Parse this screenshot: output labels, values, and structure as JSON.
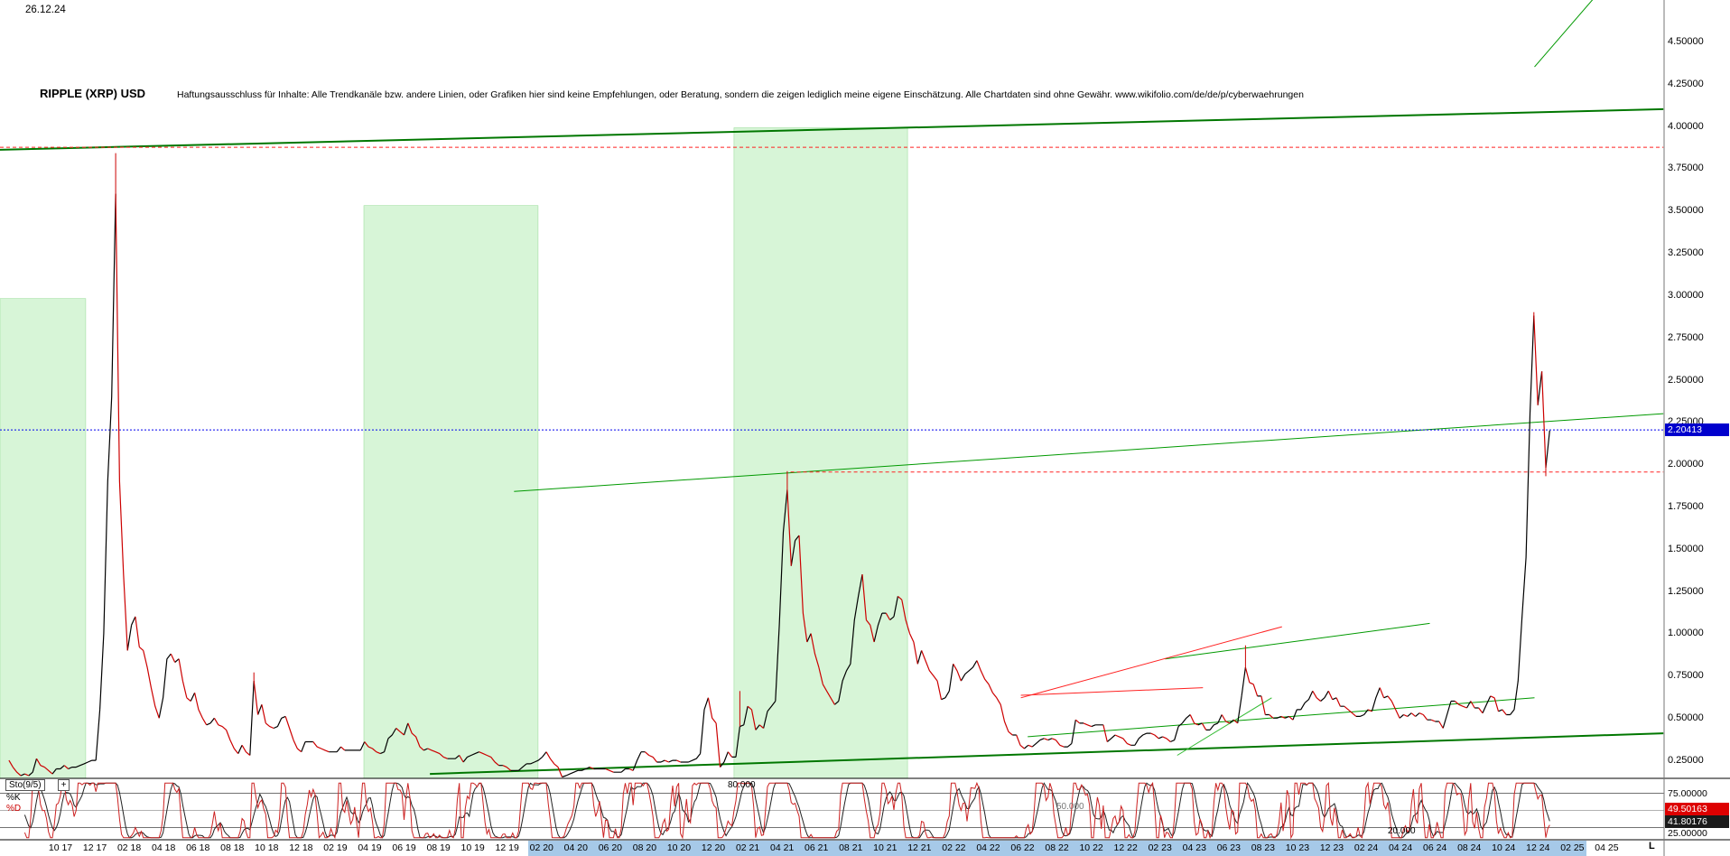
{
  "header": {
    "date": "26.12.24",
    "title": "RIPPLE (XRP) USD",
    "disclaimer": "Haftungsausschluss für Inhalte: Alle Trendkanäle bzw. andere Linien, oder Grafiken hier sind keine Empfehlungen, oder Beratung, sondern die zeigen lediglich meine eigene Einschätzung. Alle Chartdaten sind ohne Gewähr. www.wikifolio.com/de/de/p/cyberwaehrungen"
  },
  "price_axis": {
    "current_price_label": "2.20413"
  },
  "date_axis": {
    "highlight_from_label": "02 20",
    "highlight_to_label": "02 25",
    "corner_mark": "L"
  },
  "stochastic": {
    "name": "Sto(9/5)",
    "expand_button": "+",
    "k_label": "%K",
    "d_label": "%D",
    "k_value": "49.50163",
    "d_value": "41.80176",
    "upper_tick": "75.00000",
    "lower_tick": "25.00000",
    "levels": [
      80,
      50,
      20
    ],
    "line_labels": {
      "upper": "80.000",
      "middle": "50.000",
      "lower": "20.000"
    }
  },
  "colors": {
    "up": "#000000",
    "down": "#cc0000",
    "trend_green_dark": "#007700",
    "trend_green": "#009900",
    "trend_green_bright": "#33bb33",
    "box_fill": "#c9f2c9",
    "box_stroke": "#9fdf9f",
    "red": "#ff2222",
    "blue": "#0000ee",
    "axis_highlight": "#a6c9e8"
  },
  "chart_data": {
    "type": "candlestick",
    "title": "RIPPLE (XRP) USD",
    "unit": "USD",
    "interval": "weekly",
    "series_start": "2017-07",
    "series_start_month_offset": -3.0,
    "y_tick_step": 0.25,
    "y_ticks": [
      "4.50000",
      "4.25000",
      "4.00000",
      "3.75000",
      "3.50000",
      "3.25000",
      "3.00000",
      "2.75000",
      "2.50000",
      "2.25000",
      "2.00000",
      "1.75000",
      "1.50000",
      "1.25000",
      "1.00000",
      "0.75000",
      "0.50000",
      "0.25000"
    ],
    "x_ticks": [
      "10 17",
      "12 17",
      "02 18",
      "04 18",
      "06 18",
      "08 18",
      "10 18",
      "12 18",
      "02 19",
      "04 19",
      "06 19",
      "08 19",
      "10 19",
      "12 19",
      "02 20",
      "04 20",
      "06 20",
      "08 20",
      "10 20",
      "12 20",
      "02 21",
      "04 21",
      "06 21",
      "08 21",
      "10 21",
      "12 21",
      "02 22",
      "04 22",
      "06 22",
      "08 22",
      "10 22",
      "12 22",
      "02 23",
      "04 23",
      "06 23",
      "08 23",
      "10 23",
      "12 23",
      "02 24",
      "04 24",
      "06 24",
      "08 24",
      "10 24",
      "12 24",
      "02 25",
      "04 25"
    ],
    "current_price": 2.20413,
    "closes": [
      0.25,
      0.21,
      0.18,
      0.16,
      0.17,
      0.16,
      0.18,
      0.26,
      0.22,
      0.21,
      0.19,
      0.17,
      0.2,
      0.2,
      0.22,
      0.2,
      0.21,
      0.21,
      0.22,
      0.23,
      0.24,
      0.25,
      0.25,
      0.55,
      1.0,
      1.9,
      2.4,
      3.6,
      1.9,
      1.35,
      0.9,
      1.05,
      1.1,
      0.92,
      0.9,
      0.8,
      0.68,
      0.57,
      0.5,
      0.62,
      0.85,
      0.88,
      0.83,
      0.85,
      0.72,
      0.62,
      0.6,
      0.65,
      0.55,
      0.5,
      0.46,
      0.47,
      0.5,
      0.46,
      0.45,
      0.43,
      0.37,
      0.32,
      0.29,
      0.34,
      0.3,
      0.28,
      0.72,
      0.52,
      0.58,
      0.47,
      0.45,
      0.44,
      0.45,
      0.5,
      0.51,
      0.44,
      0.37,
      0.32,
      0.3,
      0.36,
      0.36,
      0.36,
      0.33,
      0.32,
      0.31,
      0.3,
      0.3,
      0.3,
      0.33,
      0.31,
      0.31,
      0.31,
      0.31,
      0.31,
      0.36,
      0.33,
      0.32,
      0.3,
      0.29,
      0.3,
      0.38,
      0.4,
      0.44,
      0.42,
      0.4,
      0.47,
      0.41,
      0.39,
      0.33,
      0.31,
      0.32,
      0.31,
      0.3,
      0.29,
      0.27,
      0.26,
      0.26,
      0.26,
      0.28,
      0.24,
      0.27,
      0.28,
      0.29,
      0.3,
      0.29,
      0.28,
      0.27,
      0.24,
      0.22,
      0.22,
      0.21,
      0.19,
      0.19,
      0.19,
      0.21,
      0.23,
      0.23,
      0.24,
      0.25,
      0.27,
      0.3,
      0.26,
      0.23,
      0.21,
      0.14,
      0.16,
      0.17,
      0.18,
      0.19,
      0.19,
      0.2,
      0.21,
      0.2,
      0.2,
      0.2,
      0.2,
      0.19,
      0.18,
      0.18,
      0.18,
      0.2,
      0.2,
      0.19,
      0.25,
      0.3,
      0.3,
      0.28,
      0.27,
      0.24,
      0.24,
      0.25,
      0.24,
      0.25,
      0.25,
      0.24,
      0.24,
      0.24,
      0.25,
      0.26,
      0.29,
      0.55,
      0.62,
      0.5,
      0.47,
      0.21,
      0.24,
      0.3,
      0.27,
      0.27,
      0.45,
      0.46,
      0.57,
      0.55,
      0.43,
      0.46,
      0.44,
      0.54,
      0.57,
      0.6,
      1.05,
      1.6,
      1.85,
      1.4,
      1.55,
      1.58,
      1.12,
      0.95,
      1.0,
      0.88,
      0.8,
      0.7,
      0.66,
      0.62,
      0.58,
      0.6,
      0.72,
      0.78,
      0.82,
      1.08,
      1.22,
      1.35,
      1.08,
      1.05,
      0.95,
      1.05,
      1.12,
      1.12,
      1.08,
      1.1,
      1.22,
      1.2,
      1.08,
      1.0,
      0.95,
      0.82,
      0.9,
      0.84,
      0.78,
      0.75,
      0.72,
      0.61,
      0.62,
      0.66,
      0.82,
      0.78,
      0.72,
      0.76,
      0.78,
      0.8,
      0.84,
      0.78,
      0.73,
      0.7,
      0.65,
      0.62,
      0.58,
      0.48,
      0.42,
      0.4,
      0.4,
      0.34,
      0.32,
      0.34,
      0.33,
      0.35,
      0.37,
      0.38,
      0.37,
      0.38,
      0.37,
      0.34,
      0.33,
      0.33,
      0.35,
      0.49,
      0.47,
      0.47,
      0.46,
      0.45,
      0.46,
      0.46,
      0.46,
      0.36,
      0.38,
      0.4,
      0.39,
      0.38,
      0.35,
      0.34,
      0.34,
      0.38,
      0.4,
      0.41,
      0.41,
      0.4,
      0.38,
      0.39,
      0.38,
      0.36,
      0.37,
      0.45,
      0.47,
      0.5,
      0.52,
      0.47,
      0.46,
      0.47,
      0.43,
      0.43,
      0.46,
      0.47,
      0.52,
      0.48,
      0.47,
      0.49,
      0.47,
      0.63,
      0.8,
      0.71,
      0.7,
      0.63,
      0.63,
      0.52,
      0.52,
      0.5,
      0.5,
      0.51,
      0.5,
      0.51,
      0.49,
      0.55,
      0.55,
      0.59,
      0.61,
      0.66,
      0.62,
      0.6,
      0.62,
      0.66,
      0.61,
      0.62,
      0.57,
      0.57,
      0.55,
      0.53,
      0.51,
      0.51,
      0.52,
      0.55,
      0.54,
      0.62,
      0.68,
      0.62,
      0.63,
      0.6,
      0.55,
      0.5,
      0.52,
      0.51,
      0.53,
      0.51,
      0.53,
      0.52,
      0.49,
      0.49,
      0.48,
      0.48,
      0.44,
      0.52,
      0.6,
      0.6,
      0.58,
      0.57,
      0.56,
      0.6,
      0.56,
      0.56,
      0.53,
      0.58,
      0.63,
      0.62,
      0.54,
      0.55,
      0.52,
      0.52,
      0.55,
      0.72,
      1.1,
      1.45,
      2.3,
      2.88,
      2.35,
      2.55,
      1.98,
      2.2
    ],
    "wicks": [
      {
        "i": 27,
        "p": 3.84
      },
      {
        "i": 62,
        "p": 0.77
      },
      {
        "i": 185,
        "p": 0.66
      },
      {
        "i": 197,
        "p": 1.96
      },
      {
        "i": 313,
        "p": 0.93
      },
      {
        "i": 386,
        "p": 2.9
      },
      {
        "i": 389,
        "p": 1.93
      }
    ],
    "annotations": {
      "green_boxes": [
        {
          "m1": -3.52,
          "m2": 1.47,
          "p_top": 2.98
        },
        {
          "m1": 17.66,
          "m2": 27.8,
          "p_top": 3.53
        },
        {
          "m1": 39.2,
          "m2": 49.3,
          "p_top": 3.99
        }
      ],
      "green_lines": [
        {
          "m1": -3.52,
          "p1": 3.86,
          "m2": 93.3,
          "p2": 4.1,
          "w": 2
        },
        {
          "m1": 26.4,
          "p1": 1.84,
          "m2": 93.3,
          "p2": 2.3,
          "w": 1
        },
        {
          "m1": 21.5,
          "p1": 0.17,
          "m2": 93.3,
          "p2": 0.41,
          "w": 2
        },
        {
          "m1": 64.3,
          "p1": 0.85,
          "m2": 79.7,
          "p2": 1.06,
          "w": 1
        },
        {
          "m1": 56.3,
          "p1": 0.39,
          "m2": 85.8,
          "p2": 0.62,
          "w": 1
        },
        {
          "m1": 65.0,
          "p1": 0.28,
          "m2": 70.5,
          "p2": 0.62,
          "w": 1
        },
        {
          "m1": 85.8,
          "p1": 4.35,
          "m2": 89.2,
          "p2": 4.75,
          "w": 1
        }
      ],
      "red_dashed_lines": [
        {
          "m1": -3.52,
          "p1": 3.875,
          "m2": 93.3,
          "p2": 3.875
        },
        {
          "m1": 42.5,
          "p1": 1.955,
          "m2": 93.3,
          "p2": 1.955
        }
      ],
      "red_lines": [
        {
          "m1": 55.9,
          "p1": 0.62,
          "m2": 71.1,
          "p2": 1.04
        },
        {
          "m1": 55.9,
          "p1": 0.635,
          "m2": 66.5,
          "p2": 0.68
        }
      ],
      "blue_dotted_price": 2.20413
    }
  }
}
